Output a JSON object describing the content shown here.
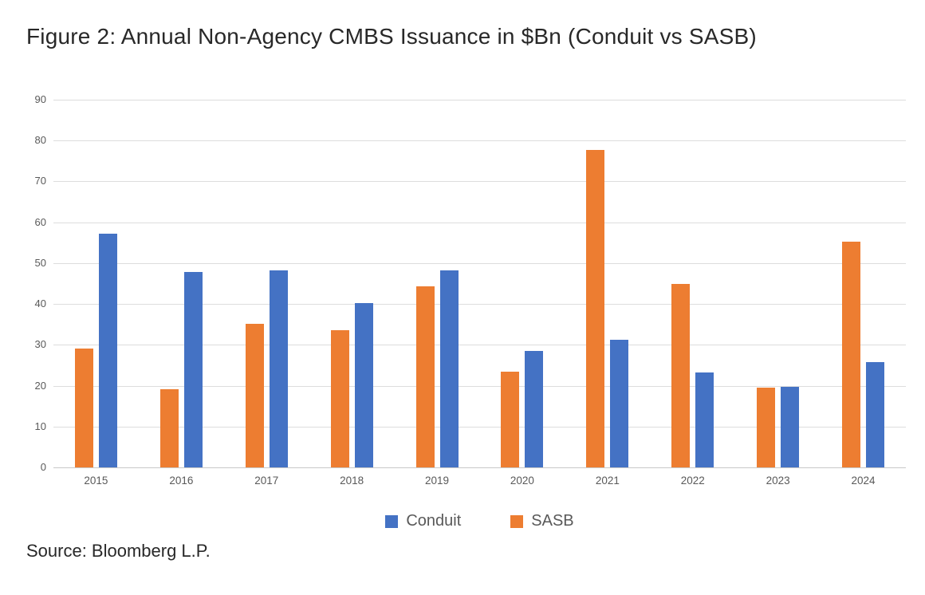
{
  "figure": {
    "title": "Figure 2: Annual Non-Agency CMBS Issuance in $Bn (Conduit vs SASB)",
    "source": "Source: Bloomberg L.P."
  },
  "chart_data": {
    "type": "bar",
    "title": "Figure 2: Annual Non-Agency CMBS Issuance in $Bn (Conduit vs SASB)",
    "xlabel": "",
    "ylabel": "",
    "categories": [
      "2015",
      "2016",
      "2017",
      "2018",
      "2019",
      "2020",
      "2021",
      "2022",
      "2023",
      "2024"
    ],
    "series": [
      {
        "name": "SASB",
        "position": "left-bar-in-group",
        "color": "#ED7D31",
        "values": [
          29.0,
          19.2,
          35.1,
          33.5,
          44.4,
          23.5,
          77.7,
          44.9,
          19.5,
          55.2
        ]
      },
      {
        "name": "Conduit",
        "position": "right-bar-in-group",
        "color": "#4472C4",
        "values": [
          57.2,
          47.9,
          48.3,
          40.3,
          48.3,
          28.6,
          31.2,
          23.3,
          19.7,
          25.7
        ]
      }
    ],
    "legend": [
      {
        "label": "Conduit",
        "color": "#4472C4"
      },
      {
        "label": "SASB",
        "color": "#ED7D31"
      }
    ],
    "legend_position": "bottom-center",
    "ylim": [
      0,
      90
    ],
    "yticks": [
      0,
      10,
      20,
      30,
      40,
      50,
      60,
      70,
      80,
      90
    ],
    "grid": true,
    "gridline_color": "#dddddd",
    "tick_label_color": "#595959"
  }
}
